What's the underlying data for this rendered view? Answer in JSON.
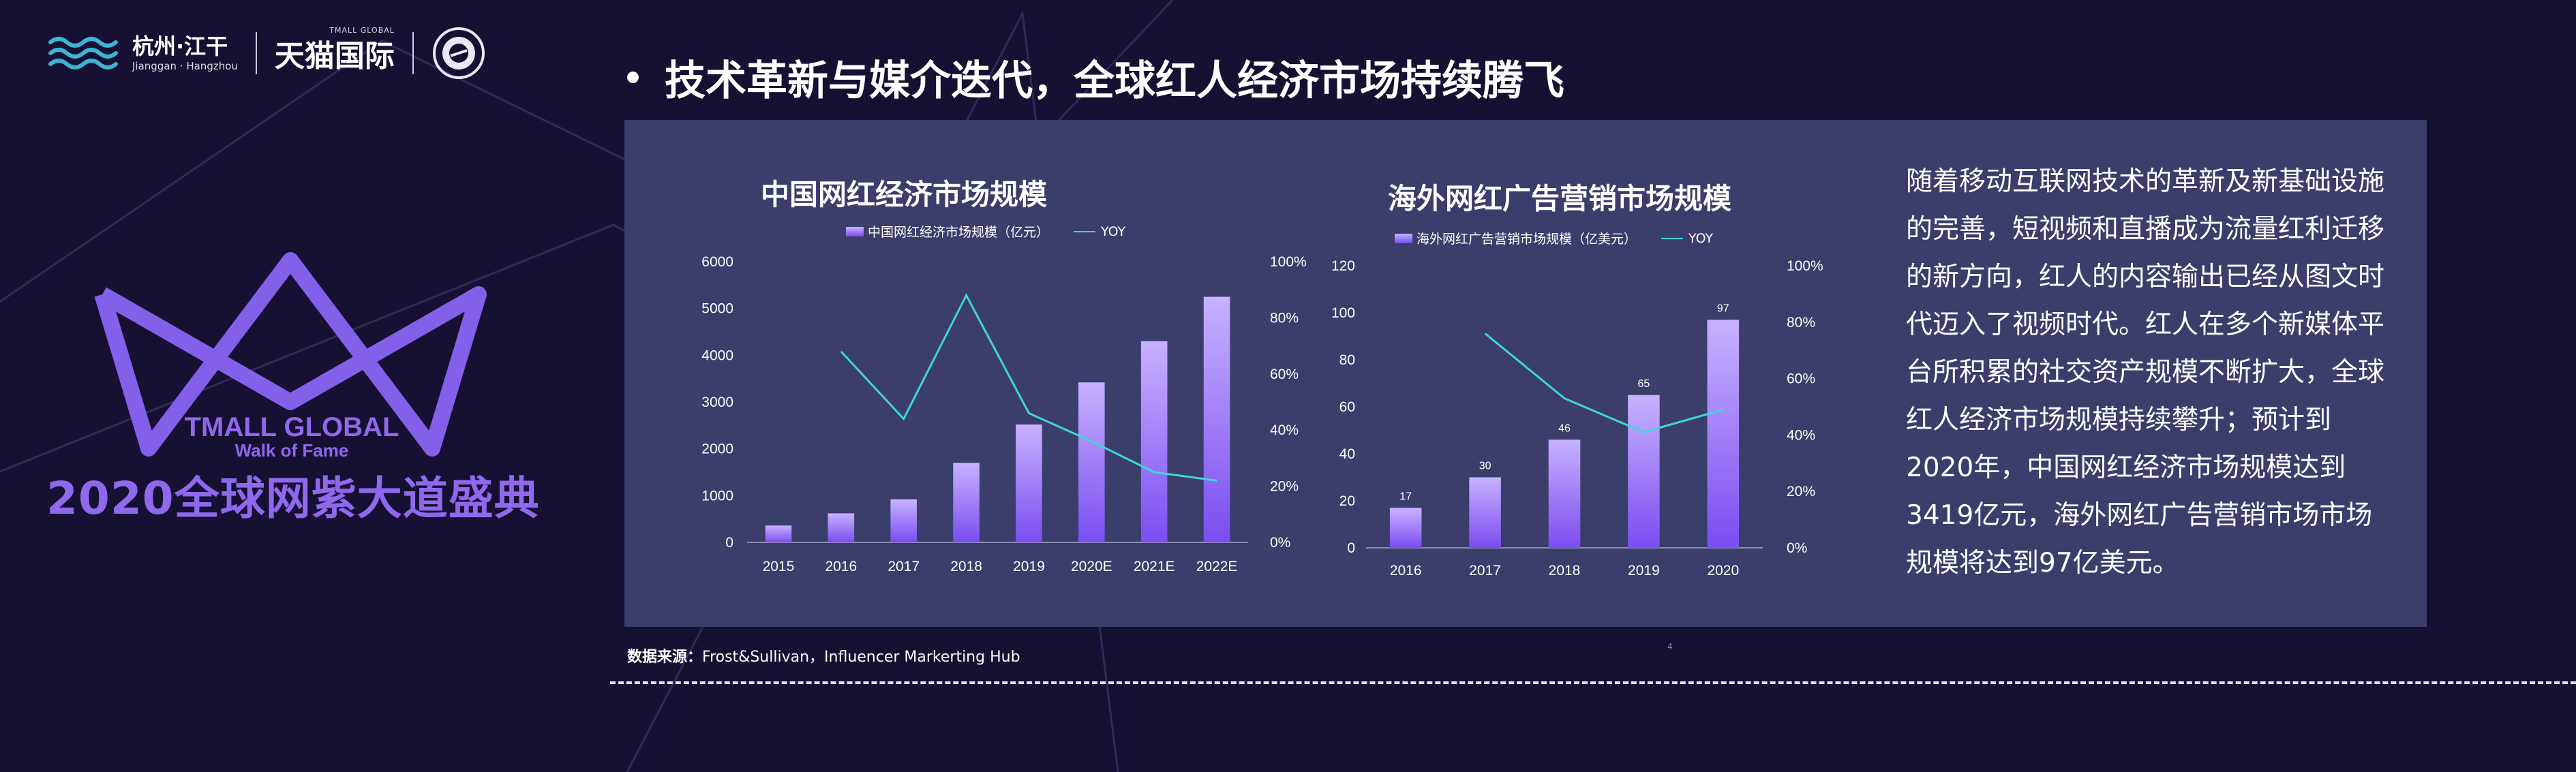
{
  "header": {
    "logo_hangzhou_cn": "杭州·江干",
    "logo_hangzhou_en": "Jianggan · Hangzhou",
    "logo_tmall_small": "TMALL GLOBAL",
    "logo_tmall_cn": "天猫国际"
  },
  "event": {
    "crown_line1": "TMALL GLOBAL",
    "crown_line2": "Walk of Fame",
    "title": "2020全球网紫大道盛典"
  },
  "heading": "技术革新与媒介迭代，全球红人经济市场持续腾飞",
  "description": "随着移动互联网技术的革新及新基础设施的完善，短视频和直播成为流量红利迁移的新方向，红人的内容输出已经从图文时代迈入了视频时代。红人在多个新媒体平台所积累的社交资产规模不断扩大，全球红人经济市场规模持续攀升；预计到2020年，中国网红经济市场规模达到3419亿元，海外网红广告营销市场市场规模将达到97亿美元。",
  "source": {
    "label": "数据来源：",
    "text": "Frost&Sullivan，Influencer Markerting Hub"
  },
  "page_number": "4",
  "colors": {
    "background": "#161032",
    "panel": "#3b3d6b",
    "bar_top": "#c7b2ff",
    "bar_bottom": "#7a4df0",
    "yoy_line": "#3fd6d8",
    "accent": "#8f68ee"
  },
  "chart_data": [
    {
      "type": "bar",
      "title": "中国网红经济市场规模",
      "categories": [
        "2015",
        "2016",
        "2017",
        "2018",
        "2019",
        "2020E",
        "2021E",
        "2022E"
      ],
      "series": [
        {
          "name": "中国网红经济市场规模（亿元）",
          "type": "bar",
          "axis": "left",
          "values": [
            360,
            620,
            920,
            1700,
            2520,
            3419,
            4300,
            5250
          ]
        },
        {
          "name": "YOY",
          "type": "line",
          "axis": "right",
          "values": [
            null,
            68,
            44,
            88,
            46,
            36,
            25,
            22
          ]
        }
      ],
      "ylim": [
        0,
        6000
      ],
      "yticks": [
        0,
        1000,
        2000,
        3000,
        4000,
        5000,
        6000
      ],
      "y2lim": [
        0,
        100
      ],
      "y2ticks": [
        0,
        20,
        40,
        60,
        80,
        100
      ],
      "y2_format": "%",
      "data_labels": false,
      "grid": false,
      "legend_position": "top"
    },
    {
      "type": "bar",
      "title": "海外网红广告营销市场规模",
      "categories": [
        "2016",
        "2017",
        "2018",
        "2019",
        "2020"
      ],
      "series": [
        {
          "name": "海外网红广告营销市场规模（亿美元）",
          "type": "bar",
          "axis": "left",
          "values": [
            17,
            30,
            46,
            65,
            97
          ]
        },
        {
          "name": "YOY",
          "type": "line",
          "axis": "right",
          "values": [
            null,
            76,
            53,
            41,
            49
          ]
        }
      ],
      "ylim": [
        0,
        120
      ],
      "yticks": [
        0,
        20,
        40,
        60,
        80,
        100,
        120
      ],
      "y2lim": [
        0,
        100
      ],
      "y2ticks": [
        0,
        20,
        40,
        60,
        80,
        100
      ],
      "y2_format": "%",
      "data_labels": true,
      "grid": false,
      "legend_position": "top"
    }
  ]
}
